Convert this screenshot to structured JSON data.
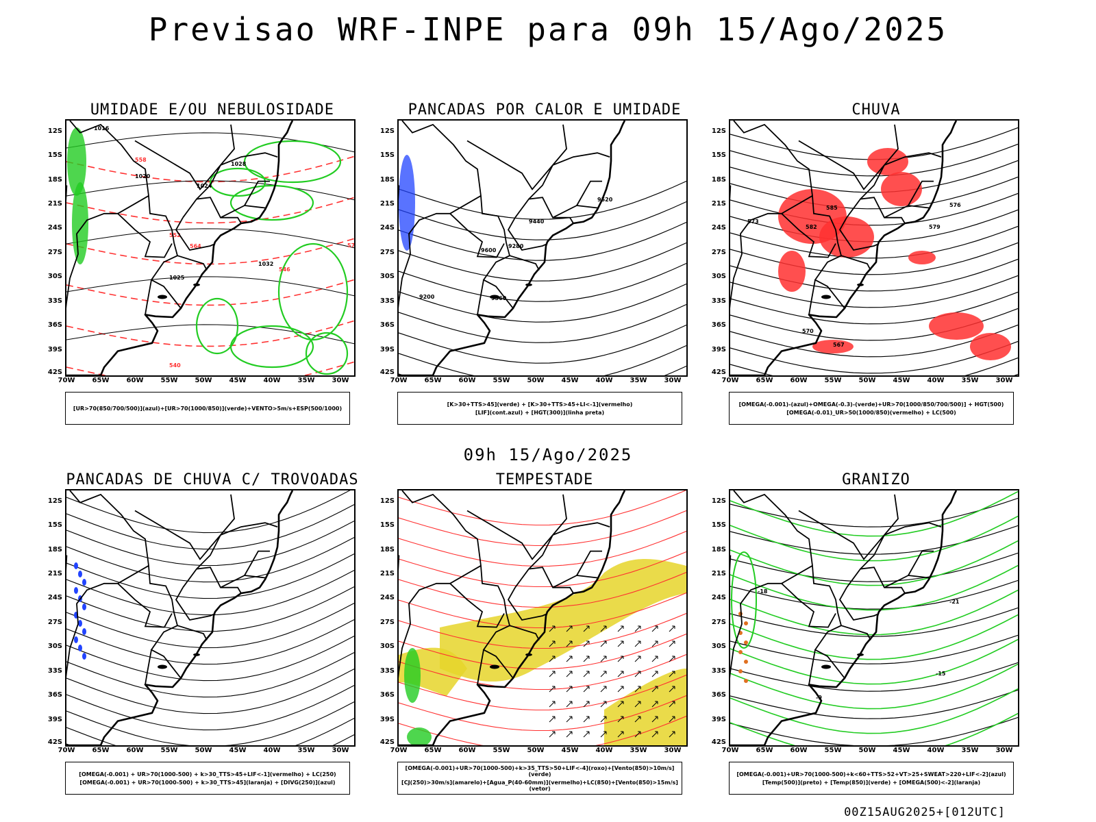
{
  "header": {
    "title": "Previsao WRF-INPE  para 09h 15/Ago/2025"
  },
  "mid_time": "09h 15/Ago/2025",
  "footer": "00Z15AUG2025+[012UTC]",
  "axes": {
    "lat_labels": [
      "12S",
      "15S",
      "18S",
      "21S",
      "24S",
      "27S",
      "30S",
      "33S",
      "36S",
      "39S",
      "42S"
    ],
    "lon_labels": [
      "70W",
      "65W",
      "60W",
      "55W",
      "50W",
      "45W",
      "40W",
      "35W",
      "30W"
    ]
  },
  "panels": [
    {
      "title": "UMIDADE E/OU NEBULOSIDADE",
      "legend": [
        "[UR>70(850/700/500)](azul)+[UR>70(1000/850)](verde)+VENTO>5m/s+ESP(500/1000)"
      ],
      "contour_labels": [
        "1016",
        "1020",
        "1024",
        "1028",
        "1032",
        "1025",
        "570",
        "564",
        "558",
        "552",
        "546",
        "540"
      ]
    },
    {
      "title": "PANCADAS POR CALOR E UMIDADE",
      "legend": [
        "[K>30+TTS>45](verde) + [K>30+TTS>45+LI<-1](vermelho)",
        "[LIF](cont.azul) + [HGT(300)](linha preta)"
      ],
      "contour_labels": [
        "9520",
        "9600",
        "9440",
        "9360",
        "9280",
        "9200"
      ]
    },
    {
      "title": "CHUVA",
      "legend": [
        "[OMEGA(-0.001)-(azul)+OMEGA(-0.3)-(verde)+UR>70(1000/850/700/500)] + HGT(500)",
        "[OMEGA(-0.01)_UR>50(1000/850)(vermelho) + LC(500)"
      ],
      "contour_labels": [
        "585",
        "582",
        "579",
        "576",
        "573",
        "570",
        "567"
      ]
    },
    {
      "title": "PANCADAS DE CHUVA C/ TROVOADAS",
      "legend": [
        "[OMEGA(-0.001) + UR>70(1000-500) + k>30_TTS>45+LIF<-1](vermelho) + LC(250)",
        "[OMEGA(-0.001) + UR>70(1000-500) + k>30_TTS>45](laranja) + [DIVG(250)](azul)"
      ],
      "contour_labels": []
    },
    {
      "title": "TEMPESTADE",
      "legend": [
        "[OMEGA(-0.001)+UR>70(1000-500)+k>35_TTS>50+LIF<-4](roxo)+[Vento(850)>10m/s](verde)",
        "[CJ(250)>30m/s](amarelo)+[Agua_P(40-60mm)](vermelho)+LC(850)+[Vento(850)>15m/s](vetor)"
      ],
      "contour_labels": []
    },
    {
      "title": "GRANIZO",
      "legend": [
        "[OMEGA(-0.001)+UR>70(1000-500)+k<60+TTS>52+VT>25+SWEAT>220+LIF<-2](azul)",
        "[Temp(500)](preto) + [Temp(850)](verde) + [OMEGA(500)<-2](laranja)"
      ],
      "contour_labels": [
        "-9",
        "-15",
        "-21",
        "-18"
      ]
    }
  ],
  "colors": {
    "coast": "#000000",
    "red": "#ff3030",
    "green": "#22cc22",
    "blue": "#2244ff",
    "yellow": "#e6d52a",
    "orange": "#e07020"
  }
}
